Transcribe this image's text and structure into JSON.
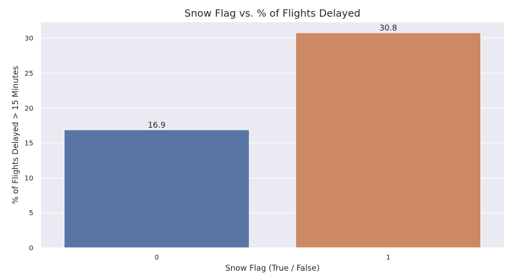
{
  "chart_data": {
    "type": "bar",
    "title": "Snow Flag vs. % of Flights Delayed",
    "xlabel": "Snow Flag (True / False)",
    "ylabel": "% of Flights Delayed > 15 Minutes",
    "categories": [
      "0",
      "1"
    ],
    "values": [
      16.9,
      30.8
    ],
    "data_labels": [
      "16.9",
      "30.8"
    ],
    "colors": [
      "#5975a4",
      "#cc8963"
    ],
    "ylim": [
      0,
      32.3
    ],
    "yticks": [
      0,
      5,
      10,
      15,
      20,
      25,
      30
    ],
    "grid": true,
    "background": "#eaeaf2",
    "legend": "none"
  }
}
